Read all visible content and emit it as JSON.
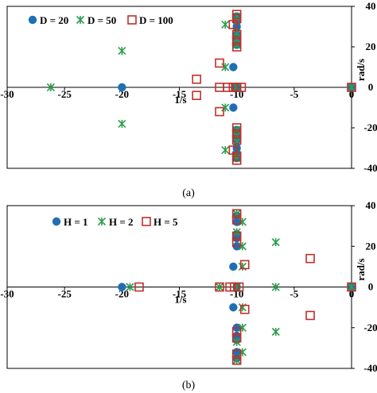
{
  "chart_data": [
    {
      "type": "scatter",
      "panel_label": "(a)",
      "xlabel": "1/s",
      "ylabel": "rad/s",
      "xlim": [
        -30,
        0
      ],
      "ylim": [
        -40,
        40
      ],
      "x_ticks": [
        -30,
        -25,
        -20,
        -15,
        -10,
        -5,
        0
      ],
      "y_ticks": [
        -40,
        -20,
        0,
        20,
        40
      ],
      "x_tick_labels": [
        "-30",
        "-25",
        "-20",
        "-15",
        "-10",
        "-5",
        "0"
      ],
      "y_tick_labels": [
        "-40",
        "-20",
        "0",
        "20",
        "40"
      ],
      "grid": false,
      "legend_position": "top-left",
      "series": [
        {
          "name": "D = 20",
          "marker": "circle",
          "color": "#1f6fb5",
          "points": [
            [
              -20,
              0
            ],
            [
              -10.3,
              10
            ],
            [
              -10.3,
              -10
            ],
            [
              -10,
              0
            ],
            [
              -10,
              35
            ],
            [
              -10,
              33
            ],
            [
              -10,
              30
            ],
            [
              -10,
              26
            ],
            [
              -10,
              24
            ],
            [
              -10,
              21
            ],
            [
              -10,
              -21
            ],
            [
              -10,
              -24
            ],
            [
              -10,
              -26
            ],
            [
              -10,
              -30
            ],
            [
              -10,
              -33
            ],
            [
              -10,
              -35
            ],
            [
              0,
              0
            ]
          ]
        },
        {
          "name": "D = 50",
          "marker": "asterisk",
          "color": "#2e9e4f",
          "points": [
            [
              -26.2,
              0
            ],
            [
              -20,
              18
            ],
            [
              -20,
              -18
            ],
            [
              -11,
              31
            ],
            [
              -11,
              10
            ],
            [
              -11,
              -10
            ],
            [
              -11,
              -31
            ],
            [
              -10,
              35
            ],
            [
              -10,
              33
            ],
            [
              -10,
              27
            ],
            [
              -10,
              24
            ],
            [
              -10,
              21
            ],
            [
              -10,
              -21
            ],
            [
              -10,
              -24
            ],
            [
              -10,
              -27
            ],
            [
              -10,
              -33
            ],
            [
              -10,
              -35
            ],
            [
              -10,
              0
            ],
            [
              0,
              0
            ]
          ]
        },
        {
          "name": "D = 100",
          "marker": "square",
          "color": "#c0302a",
          "points": [
            [
              -13.5,
              4
            ],
            [
              -13.5,
              -4
            ],
            [
              -11.5,
              12
            ],
            [
              -11.5,
              -12
            ],
            [
              -11.5,
              0
            ],
            [
              -10.8,
              0
            ],
            [
              -10.3,
              0
            ],
            [
              -10,
              0
            ],
            [
              -9.6,
              0
            ],
            [
              -10.3,
              31
            ],
            [
              -10.3,
              -31
            ],
            [
              -10,
              36
            ],
            [
              -10,
              34
            ],
            [
              -10,
              26
            ],
            [
              -10,
              23
            ],
            [
              -10,
              20
            ],
            [
              -10,
              -20
            ],
            [
              -10,
              -23
            ],
            [
              -10,
              -26
            ],
            [
              -10,
              -34
            ],
            [
              -10,
              -36
            ],
            [
              0,
              0
            ]
          ]
        }
      ]
    },
    {
      "type": "scatter",
      "panel_label": "(b)",
      "xlabel": "1/s",
      "ylabel": "rad/s",
      "xlim": [
        -30,
        0
      ],
      "ylim": [
        -40,
        40
      ],
      "x_ticks": [
        -30,
        -25,
        -20,
        -15,
        -10,
        -5,
        0
      ],
      "y_ticks": [
        -40,
        -20,
        0,
        20,
        40
      ],
      "x_tick_labels": [
        "-30",
        "-25",
        "-20",
        "-15",
        "-10",
        "-5",
        "0"
      ],
      "y_tick_labels": [
        "-40",
        "-20",
        "0",
        "20",
        "40"
      ],
      "grid": false,
      "legend_position": "top-left",
      "series": [
        {
          "name": "H = 1",
          "marker": "circle",
          "color": "#1f6fb5",
          "points": [
            [
              -20,
              0
            ],
            [
              -10.3,
              10
            ],
            [
              -10.3,
              -10
            ],
            [
              -10,
              0
            ],
            [
              -10,
              35
            ],
            [
              -10,
              32
            ],
            [
              -10,
              26
            ],
            [
              -10,
              24
            ],
            [
              -10,
              20
            ],
            [
              -10,
              -20
            ],
            [
              -10,
              -24
            ],
            [
              -10,
              -26
            ],
            [
              -10,
              -32
            ],
            [
              -10,
              -35
            ],
            [
              0,
              0
            ]
          ]
        },
        {
          "name": "H = 2",
          "marker": "asterisk",
          "color": "#2e9e4f",
          "points": [
            [
              -19.3,
              0
            ],
            [
              -9.5,
              32
            ],
            [
              -9.5,
              20
            ],
            [
              -9.5,
              10
            ],
            [
              -9.5,
              -10
            ],
            [
              -9.5,
              -20
            ],
            [
              -9.5,
              -32
            ],
            [
              -10,
              36
            ],
            [
              -10,
              27
            ],
            [
              -10,
              -27
            ],
            [
              -10,
              -36
            ],
            [
              -11.5,
              0
            ],
            [
              -10,
              0
            ],
            [
              -6.6,
              22
            ],
            [
              -6.6,
              0
            ],
            [
              -6.6,
              -22
            ],
            [
              0,
              0
            ]
          ]
        },
        {
          "name": "H = 5",
          "marker": "square",
          "color": "#c0302a",
          "points": [
            [
              -18.5,
              0
            ],
            [
              -11.5,
              0
            ],
            [
              -10.6,
              0
            ],
            [
              -10.2,
              0
            ],
            [
              -9.8,
              0
            ],
            [
              -9.3,
              11
            ],
            [
              -9.3,
              -11
            ],
            [
              -10,
              36
            ],
            [
              -10,
              33
            ],
            [
              -10,
              25
            ],
            [
              -10,
              22
            ],
            [
              -10,
              -22
            ],
            [
              -10,
              -25
            ],
            [
              -10,
              -33
            ],
            [
              -10,
              -36
            ],
            [
              -3.6,
              14
            ],
            [
              -3.6,
              -14
            ],
            [
              0,
              0
            ]
          ]
        }
      ]
    }
  ]
}
